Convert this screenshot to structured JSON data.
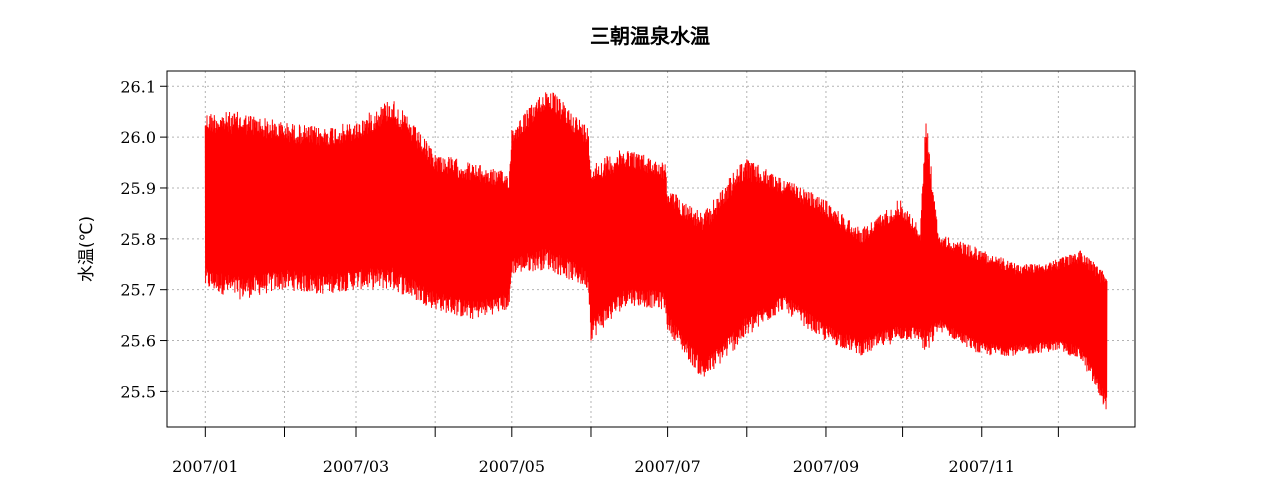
{
  "chart_data": {
    "type": "line",
    "title": "三朝温泉水温",
    "ylabel": "水温(℃)",
    "xlabel": "",
    "ylim": [
      25.43,
      26.13
    ],
    "y_ticks": [
      "25.5",
      "25.6",
      "25.7",
      "25.8",
      "25.9",
      "26.0",
      "26.1"
    ],
    "x_tick_labels": [
      "2007/01",
      "2007/03",
      "2007/05",
      "2007/07",
      "2007/09",
      "2007/11"
    ],
    "x_range": [
      "2006-12-17",
      "2007-12-31"
    ],
    "data_range": [
      "2007-01-01",
      "2007-12-20"
    ],
    "grid": true,
    "series": [
      {
        "color": "#ff0000",
        "envelope": [
          {
            "x": "2007-01-01",
            "min": 25.7,
            "max": 26.05
          },
          {
            "x": "2007-01-15",
            "min": 25.68,
            "max": 26.05
          },
          {
            "x": "2007-02-01",
            "min": 25.7,
            "max": 26.03
          },
          {
            "x": "2007-02-15",
            "min": 25.69,
            "max": 26.02
          },
          {
            "x": "2007-03-01",
            "min": 25.7,
            "max": 26.03
          },
          {
            "x": "2007-03-15",
            "min": 25.7,
            "max": 26.08
          },
          {
            "x": "2007-04-01",
            "min": 25.66,
            "max": 25.97
          },
          {
            "x": "2007-04-15",
            "min": 25.64,
            "max": 25.95
          },
          {
            "x": "2007-04-30",
            "min": 25.66,
            "max": 25.93
          },
          {
            "x": "2007-05-01",
            "min": 25.73,
            "max": 26.02
          },
          {
            "x": "2007-05-15",
            "min": 25.74,
            "max": 26.1
          },
          {
            "x": "2007-05-31",
            "min": 25.7,
            "max": 26.02
          },
          {
            "x": "2007-06-01",
            "min": 25.6,
            "max": 25.95
          },
          {
            "x": "2007-06-15",
            "min": 25.67,
            "max": 25.98
          },
          {
            "x": "2007-06-30",
            "min": 25.66,
            "max": 25.95
          },
          {
            "x": "2007-07-01",
            "min": 25.62,
            "max": 25.9
          },
          {
            "x": "2007-07-15",
            "min": 25.52,
            "max": 25.85
          },
          {
            "x": "2007-07-31",
            "min": 25.6,
            "max": 25.96
          },
          {
            "x": "2007-08-15",
            "min": 25.66,
            "max": 25.92
          },
          {
            "x": "2007-08-31",
            "min": 25.6,
            "max": 25.88
          },
          {
            "x": "2007-09-15",
            "min": 25.57,
            "max": 25.82
          },
          {
            "x": "2007-09-30",
            "min": 25.6,
            "max": 25.88
          },
          {
            "x": "2007-10-08",
            "min": 25.6,
            "max": 25.82
          },
          {
            "x": "2007-10-10",
            "min": 25.56,
            "max": 26.05
          },
          {
            "x": "2007-10-15",
            "min": 25.62,
            "max": 25.81
          },
          {
            "x": "2007-11-01",
            "min": 25.57,
            "max": 25.78
          },
          {
            "x": "2007-11-15",
            "min": 25.57,
            "max": 25.75
          },
          {
            "x": "2007-12-01",
            "min": 25.58,
            "max": 25.76
          },
          {
            "x": "2007-12-10",
            "min": 25.56,
            "max": 25.78
          },
          {
            "x": "2007-12-20",
            "min": 25.46,
            "max": 25.73
          }
        ]
      }
    ]
  }
}
